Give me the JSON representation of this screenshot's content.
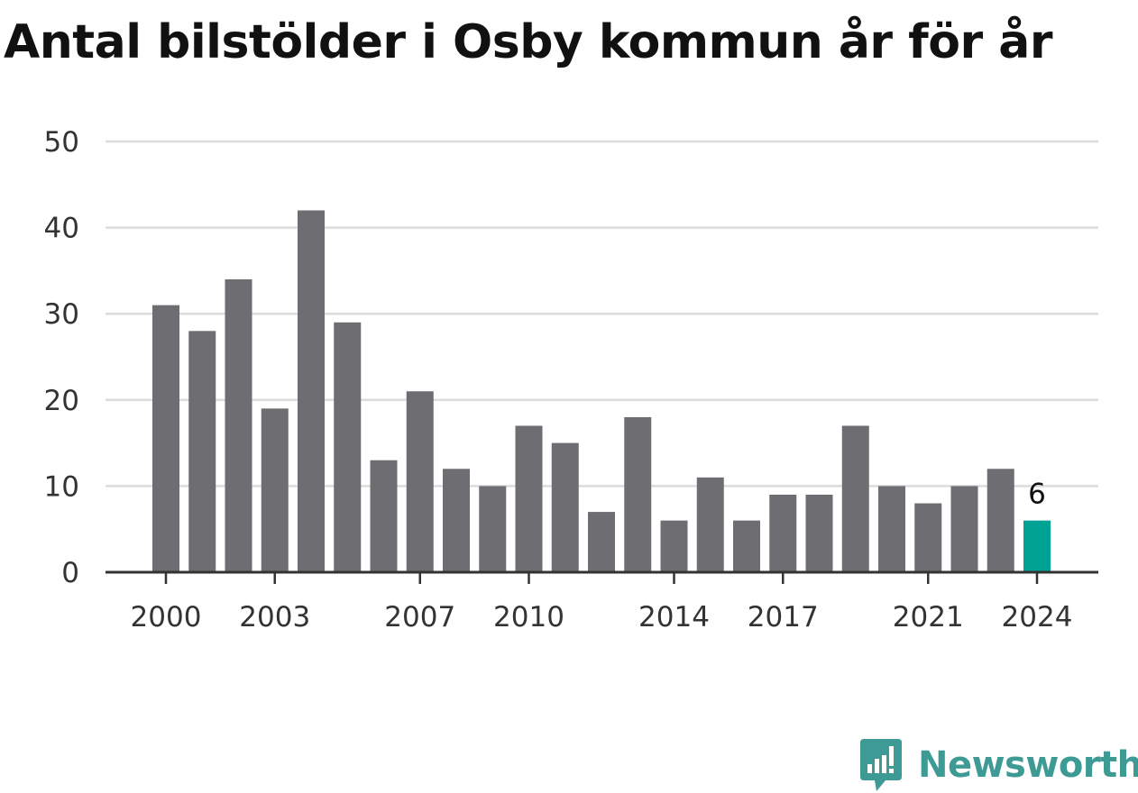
{
  "chart_data": {
    "type": "bar",
    "title": "Antal bilstölder i Osby kommun år för år",
    "xlabel": "",
    "ylabel": "",
    "ylim": [
      0,
      50
    ],
    "yticks": [
      0,
      10,
      20,
      30,
      40,
      50
    ],
    "xticks": [
      2000,
      2003,
      2007,
      2010,
      2014,
      2017,
      2021,
      2024
    ],
    "grid": true,
    "categories": [
      2000,
      2001,
      2002,
      2003,
      2004,
      2005,
      2006,
      2007,
      2008,
      2009,
      2010,
      2011,
      2012,
      2013,
      2014,
      2015,
      2016,
      2017,
      2018,
      2019,
      2020,
      2021,
      2022,
      2023,
      2024
    ],
    "values": [
      31,
      28,
      34,
      19,
      42,
      29,
      13,
      21,
      12,
      10,
      17,
      15,
      7,
      18,
      6,
      11,
      6,
      9,
      9,
      17,
      10,
      8,
      10,
      12,
      6
    ],
    "highlight_index": 24,
    "highlight_label": "6",
    "bar_color": "#6e6d72",
    "highlight_color": "#00a294",
    "grid_color": "#dcdcdc",
    "axis_color": "#333333"
  },
  "brand": {
    "name": "Newsworthy",
    "icon": "newsworthy-logo-icon",
    "color": "#3d9a94"
  }
}
